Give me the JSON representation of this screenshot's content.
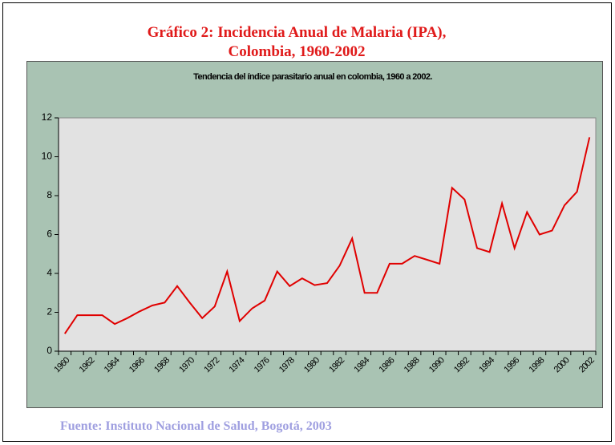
{
  "chart_data": {
    "type": "line",
    "title": [
      "Gráfico 2: Incidencia Anual de Malaria (IPA),",
      "Colombia, 1960-2002"
    ],
    "subtitle": "Tendencia del índice parasitario anual en colombia, 1960 a 2002.",
    "source": "Fuente: Instituto Nacional de Salud, Bogotá, 2003",
    "categories": [
      "1960",
      null,
      "1962",
      null,
      "1964",
      null,
      "1966",
      null,
      "1968",
      null,
      "1970",
      null,
      "1972",
      null,
      "1974",
      null,
      "1976",
      null,
      "1978",
      null,
      "1980",
      null,
      "1982",
      null,
      "1984",
      null,
      "1986",
      null,
      "1988",
      null,
      "1990",
      null,
      "1992",
      null,
      "1994",
      null,
      "1996",
      null,
      "1998",
      null,
      "2000",
      null,
      "2002"
    ],
    "series": [
      {
        "color": "#e00000",
        "values": [
          0.9,
          1.85,
          1.85,
          1.85,
          1.4,
          1.7,
          2.05,
          2.35,
          2.5,
          3.35,
          2.5,
          1.7,
          2.3,
          4.1,
          1.55,
          2.2,
          2.6,
          4.1,
          3.35,
          3.75,
          3.4,
          3.5,
          4.4,
          5.8,
          3.0,
          3.0,
          4.5,
          4.5,
          4.9,
          4.7,
          4.5,
          8.4,
          7.8,
          5.3,
          5.1,
          7.6,
          5.3,
          7.15,
          6.0,
          6.2,
          7.5,
          8.2,
          11.0
        ]
      }
    ],
    "ylim": [
      0,
      12
    ],
    "yticks": [
      0,
      2,
      4,
      6,
      8,
      10,
      12
    ],
    "grid": false
  }
}
